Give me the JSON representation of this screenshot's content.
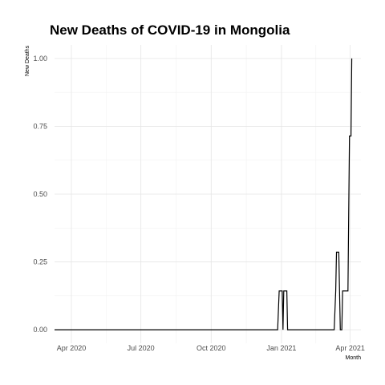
{
  "chart_data": {
    "type": "line",
    "title": "New Deaths of COVID-19 in Mongolia",
    "xlabel": "Month",
    "ylabel": "New Deaths",
    "x_tick_labels": [
      "Apr 2020",
      "Jul 2020",
      "Oct 2020",
      "Jan 2021",
      "Apr 2021"
    ],
    "x_tick_dates": [
      "2020-04-01",
      "2020-07-01",
      "2020-10-01",
      "2021-01-01",
      "2021-04-01"
    ],
    "y_tick_labels": [
      "0.00",
      "0.25",
      "0.50",
      "0.75",
      "1.00"
    ],
    "y_ticks": [
      0,
      0.25,
      0.5,
      0.75,
      1.0
    ],
    "xlim": [
      "2020-03-10",
      "2021-04-15"
    ],
    "ylim": [
      -0.05,
      1.05
    ],
    "grid": true,
    "series": [
      {
        "color": "#000000",
        "points": [
          [
            "2020-03-10",
            0
          ],
          [
            "2020-12-27",
            0
          ],
          [
            "2020-12-29",
            0.143
          ],
          [
            "2021-01-02",
            0.143
          ],
          [
            "2021-01-03",
            0
          ],
          [
            "2021-01-04",
            0.143
          ],
          [
            "2021-01-08",
            0.143
          ],
          [
            "2021-01-09",
            0
          ],
          [
            "2021-03-11",
            0
          ],
          [
            "2021-03-13",
            0.143
          ],
          [
            "2021-03-14",
            0.286
          ],
          [
            "2021-03-17",
            0.286
          ],
          [
            "2021-03-18",
            0.143
          ],
          [
            "2021-03-19",
            0
          ],
          [
            "2021-03-21",
            0
          ],
          [
            "2021-03-22",
            0.143
          ],
          [
            "2021-03-29",
            0.143
          ],
          [
            "2021-03-30",
            0.429
          ],
          [
            "2021-03-31",
            0.714
          ],
          [
            "2021-04-02",
            0.714
          ],
          [
            "2021-04-03",
            1.0
          ]
        ]
      }
    ]
  }
}
